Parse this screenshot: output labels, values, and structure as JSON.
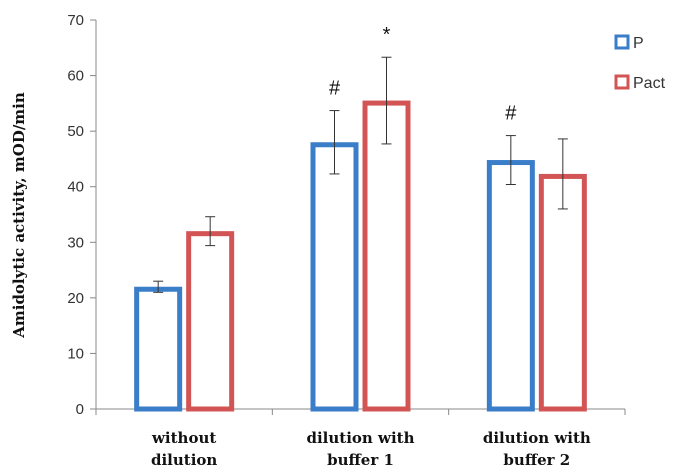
{
  "chart_data": {
    "type": "bar",
    "categories": [
      [
        "without",
        "dilution"
      ],
      [
        "dilution with",
        "buffer 1"
      ],
      [
        "dilution with",
        "buffer 2"
      ]
    ],
    "series": [
      {
        "name": "P",
        "color": "#3a7dc9",
        "values": [
          22,
          48,
          44.8
        ],
        "errors": [
          1,
          5.7,
          4.4
        ]
      },
      {
        "name": "Pact",
        "color": "#d35454",
        "values": [
          32,
          55.5,
          42.3
        ],
        "errors": [
          2.6,
          7.8,
          6.3
        ]
      }
    ],
    "annotations": [
      {
        "category": 1,
        "series": 0,
        "text": "#"
      },
      {
        "category": 1,
        "series": 1,
        "text": "*"
      },
      {
        "category": 2,
        "series": 0,
        "text": "#"
      }
    ],
    "title": "",
    "xlabel": "",
    "ylabel": "Amidolytic activity, mOD/min",
    "ylim": [
      0,
      70
    ],
    "yticks": [
      0,
      10,
      20,
      30,
      40,
      50,
      60,
      70
    ],
    "legend_position": "top-right",
    "grid": false
  }
}
